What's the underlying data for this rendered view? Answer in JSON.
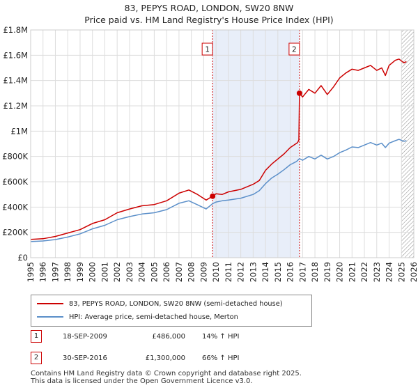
{
  "title_line1": "83, PEPYS ROAD, LONDON, SW20 8NW",
  "title_line2": "Price paid vs. HM Land Registry's House Price Index (HPI)",
  "chart_data": {
    "type": "line",
    "xlim": [
      1995,
      2026
    ],
    "ylim": [
      0,
      1800000
    ],
    "x_ticks": [
      "1995",
      "1996",
      "1997",
      "1998",
      "1999",
      "2000",
      "2001",
      "2002",
      "2003",
      "2004",
      "2005",
      "2006",
      "2007",
      "2008",
      "2009",
      "2010",
      "2011",
      "2012",
      "2013",
      "2014",
      "2015",
      "2016",
      "2017",
      "2018",
      "2019",
      "2020",
      "2021",
      "2022",
      "2023",
      "2024",
      "2025",
      "2026"
    ],
    "y_ticks": [
      {
        "value": 0,
        "label": "£0"
      },
      {
        "value": 200000,
        "label": "£200K"
      },
      {
        "value": 400000,
        "label": "£400K"
      },
      {
        "value": 600000,
        "label": "£600K"
      },
      {
        "value": 800000,
        "label": "£800K"
      },
      {
        "value": 1000000,
        "label": "£1M"
      },
      {
        "value": 1200000,
        "label": "£1.2M"
      },
      {
        "value": 1400000,
        "label": "£1.4M"
      },
      {
        "value": 1600000,
        "label": "£1.6M"
      },
      {
        "value": 1800000,
        "label": "£1.8M"
      }
    ],
    "shaded_range": [
      2009.72,
      2016.75
    ],
    "hatch_from": 2025.0,
    "series": [
      {
        "name": "83, PEPYS ROAD, LONDON, SW20 8NW (semi-detached house)",
        "color": "#cc0000",
        "points": [
          [
            1995.0,
            145000
          ],
          [
            1996.0,
            150000
          ],
          [
            1997.0,
            168000
          ],
          [
            1998.0,
            195000
          ],
          [
            1999.0,
            222000
          ],
          [
            2000.0,
            270000
          ],
          [
            2001.0,
            300000
          ],
          [
            2002.0,
            355000
          ],
          [
            2003.0,
            385000
          ],
          [
            2004.0,
            410000
          ],
          [
            2005.0,
            420000
          ],
          [
            2006.0,
            450000
          ],
          [
            2007.0,
            510000
          ],
          [
            2007.8,
            535000
          ],
          [
            2008.5,
            500000
          ],
          [
            2009.2,
            455000
          ],
          [
            2009.72,
            486000
          ],
          [
            2010.0,
            505000
          ],
          [
            2010.5,
            500000
          ],
          [
            2011.0,
            520000
          ],
          [
            2012.0,
            540000
          ],
          [
            2013.0,
            580000
          ],
          [
            2013.5,
            610000
          ],
          [
            2014.0,
            690000
          ],
          [
            2014.5,
            740000
          ],
          [
            2015.0,
            780000
          ],
          [
            2015.5,
            820000
          ],
          [
            2016.0,
            870000
          ],
          [
            2016.6,
            910000
          ],
          [
            2016.7,
            930000
          ],
          [
            2016.75,
            1300000
          ],
          [
            2017.0,
            1270000
          ],
          [
            2017.5,
            1330000
          ],
          [
            2018.0,
            1300000
          ],
          [
            2018.5,
            1360000
          ],
          [
            2019.0,
            1290000
          ],
          [
            2019.5,
            1350000
          ],
          [
            2020.0,
            1420000
          ],
          [
            2020.5,
            1460000
          ],
          [
            2021.0,
            1490000
          ],
          [
            2021.5,
            1480000
          ],
          [
            2022.0,
            1500000
          ],
          [
            2022.5,
            1520000
          ],
          [
            2023.0,
            1480000
          ],
          [
            2023.4,
            1500000
          ],
          [
            2023.7,
            1440000
          ],
          [
            2024.0,
            1520000
          ],
          [
            2024.5,
            1560000
          ],
          [
            2024.8,
            1570000
          ],
          [
            2025.2,
            1540000
          ],
          [
            2025.4,
            1550000
          ]
        ]
      },
      {
        "name": "HPI: Average price, semi-detached house, Merton",
        "color": "#5b8fc9",
        "points": [
          [
            1995.0,
            127000
          ],
          [
            1996.0,
            132000
          ],
          [
            1997.0,
            143000
          ],
          [
            1998.0,
            163000
          ],
          [
            1999.0,
            188000
          ],
          [
            2000.0,
            228000
          ],
          [
            2001.0,
            256000
          ],
          [
            2002.0,
            300000
          ],
          [
            2003.0,
            325000
          ],
          [
            2004.0,
            345000
          ],
          [
            2005.0,
            355000
          ],
          [
            2006.0,
            380000
          ],
          [
            2007.0,
            430000
          ],
          [
            2007.8,
            450000
          ],
          [
            2008.5,
            418000
          ],
          [
            2009.2,
            385000
          ],
          [
            2009.72,
            427000
          ],
          [
            2010.0,
            440000
          ],
          [
            2010.5,
            450000
          ],
          [
            2011.0,
            455000
          ],
          [
            2012.0,
            470000
          ],
          [
            2013.0,
            500000
          ],
          [
            2013.5,
            530000
          ],
          [
            2014.0,
            585000
          ],
          [
            2014.5,
            630000
          ],
          [
            2015.0,
            660000
          ],
          [
            2015.5,
            695000
          ],
          [
            2016.0,
            735000
          ],
          [
            2016.5,
            760000
          ],
          [
            2016.75,
            783000
          ],
          [
            2017.0,
            770000
          ],
          [
            2017.5,
            800000
          ],
          [
            2018.0,
            780000
          ],
          [
            2018.5,
            810000
          ],
          [
            2019.0,
            780000
          ],
          [
            2019.5,
            800000
          ],
          [
            2020.0,
            830000
          ],
          [
            2020.5,
            850000
          ],
          [
            2021.0,
            875000
          ],
          [
            2021.5,
            870000
          ],
          [
            2022.0,
            890000
          ],
          [
            2022.5,
            910000
          ],
          [
            2023.0,
            890000
          ],
          [
            2023.4,
            905000
          ],
          [
            2023.7,
            870000
          ],
          [
            2024.0,
            905000
          ],
          [
            2024.5,
            925000
          ],
          [
            2024.8,
            935000
          ],
          [
            2025.2,
            920000
          ],
          [
            2025.4,
            925000
          ]
        ]
      }
    ],
    "sales": [
      {
        "id": "1",
        "x": 2009.72,
        "y": 486000
      },
      {
        "id": "2",
        "x": 2016.75,
        "y": 1300000
      }
    ]
  },
  "legend": {
    "series1_label": "83, PEPYS ROAD, LONDON, SW20 8NW (semi-detached house)",
    "series2_label": "HPI: Average price, semi-detached house, Merton",
    "series1_color": "#cc0000",
    "series2_color": "#5b8fc9"
  },
  "sales_table": [
    {
      "id": "1",
      "date": "18-SEP-2009",
      "price": "£486,000",
      "hpi": "14% ↑ HPI"
    },
    {
      "id": "2",
      "date": "30-SEP-2016",
      "price": "£1,300,000",
      "hpi": "66% ↑ HPI"
    }
  ],
  "footer_line1": "Contains HM Land Registry data © Crown copyright and database right 2025.",
  "footer_line2": "This data is licensed under the Open Government Licence v3.0."
}
